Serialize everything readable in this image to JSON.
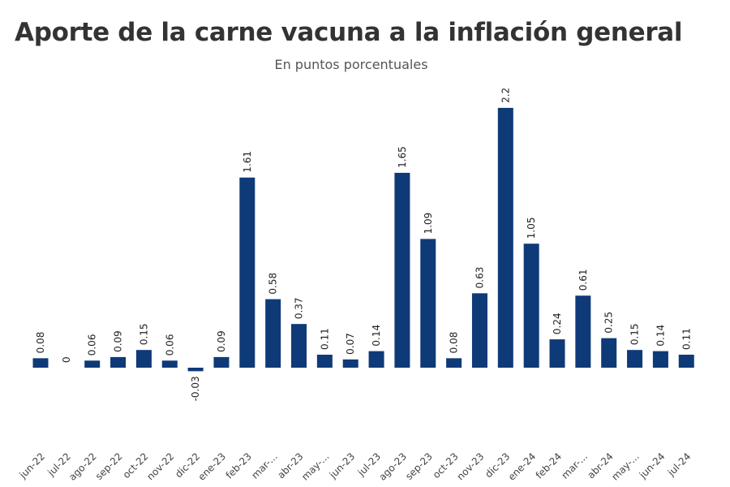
{
  "chart_data": {
    "type": "bar",
    "title": "Aporte de la carne vacuna a la inflación general",
    "subtitle": "En puntos porcentuales",
    "categories": [
      "jun-22",
      "jul-22",
      "ago-22",
      "sep-22",
      "oct-22",
      "nov-22",
      "dic-22",
      "ene-23",
      "feb-23",
      "mar-...",
      "abr-23",
      "may-...",
      "jun-23",
      "jul-23",
      "ago-23",
      "sep-23",
      "oct-23",
      "nov-23",
      "dic-23",
      "ene-24",
      "feb-24",
      "mar-...",
      "abr-24",
      "may-...",
      "jun-24",
      "jul-24"
    ],
    "values": [
      0.08,
      0,
      0.06,
      0.09,
      0.15,
      0.06,
      -0.03,
      0.09,
      1.61,
      0.58,
      0.37,
      0.11,
      0.07,
      0.14,
      1.65,
      1.09,
      0.08,
      0.63,
      2.2,
      1.05,
      0.24,
      0.61,
      0.25,
      0.15,
      0.14,
      0.11
    ],
    "value_labels": [
      "0.08",
      "0",
      "0.06",
      "0.09",
      "0.15",
      "0.06",
      "-0.03",
      "0.09",
      "1.61",
      "0.58",
      "0.37",
      "0.11",
      "0.07",
      "0.14",
      "1.65",
      "1.09",
      "0.08",
      "0.63",
      "2.2",
      "1.05",
      "0.24",
      "0.61",
      "0.25",
      "0.15",
      "0.14",
      "0.11"
    ],
    "bar_color": "#0f3a78",
    "grid": false,
    "legend": "none"
  }
}
